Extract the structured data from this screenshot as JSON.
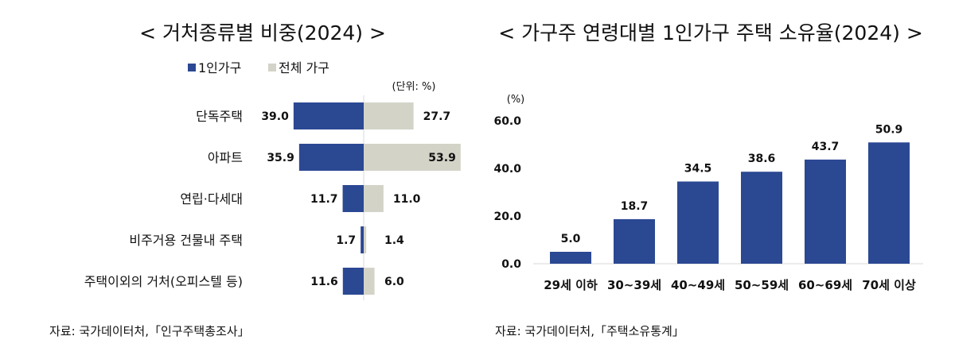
{
  "colors": {
    "single": "#2b4893",
    "total": "#d3d3c8",
    "axis": "#d8d8d8"
  },
  "chart_data": [
    {
      "type": "bar",
      "orientation": "horizontal-diverging",
      "title": "< 거처종류별 비중(2024) >",
      "unit": "(단위: %)",
      "legend_placement": "top",
      "categories": [
        "단독주택",
        "아파트",
        "연립·다세대",
        "비주거용 건물내 주택",
        "주택이외의 거처(오피스텔 등)"
      ],
      "series": [
        {
          "name": "1인가구",
          "values": [
            39.0,
            35.9,
            11.7,
            1.7,
            11.6
          ],
          "color": "#2b4893"
        },
        {
          "name": "전체 가구",
          "values": [
            27.7,
            53.9,
            11.0,
            1.4,
            6.0
          ],
          "color": "#d3d3c8"
        }
      ],
      "source": "자료: 국가데이터처,「인구주택총조사」"
    },
    {
      "type": "bar",
      "title": "< 가구주 연령대별 1인가구 주택 소유율(2024) >",
      "ylabel": "(%)",
      "ylim": [
        0,
        60
      ],
      "yticks": [
        "0.0",
        "20.0",
        "40.0",
        "60.0"
      ],
      "grid": false,
      "categories": [
        "29세 이하",
        "30~39세",
        "40~49세",
        "50~59세",
        "60~69세",
        "70세 이상"
      ],
      "values": [
        5.0,
        18.7,
        34.5,
        38.6,
        43.7,
        50.9
      ],
      "color": "#2b4893",
      "source": "자료: 국가데이터처,「주택소유통계」"
    }
  ]
}
